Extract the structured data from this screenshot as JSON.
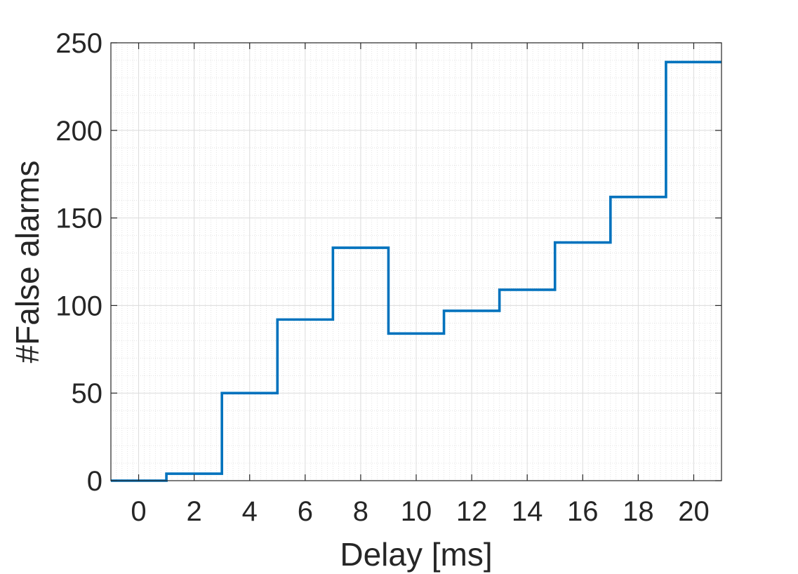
{
  "chart_data": {
    "type": "line",
    "step": true,
    "title": "",
    "xlabel": "Delay [ms]",
    "ylabel": "#False alarms",
    "xlim": [
      -1,
      21
    ],
    "ylim": [
      0,
      250
    ],
    "xticks": [
      0,
      2,
      4,
      6,
      8,
      10,
      12,
      14,
      16,
      18,
      20
    ],
    "yticks": [
      0,
      50,
      100,
      150,
      200,
      250
    ],
    "grid": true,
    "minor_grid": true,
    "box": true,
    "series": [
      {
        "color": "#0072BD",
        "x": [
          -1,
          1,
          3,
          5,
          7,
          9,
          11,
          13,
          15,
          17,
          19
        ],
        "values": [
          0,
          4,
          50,
          92,
          133,
          84,
          97,
          109,
          136,
          162,
          239
        ]
      }
    ]
  }
}
